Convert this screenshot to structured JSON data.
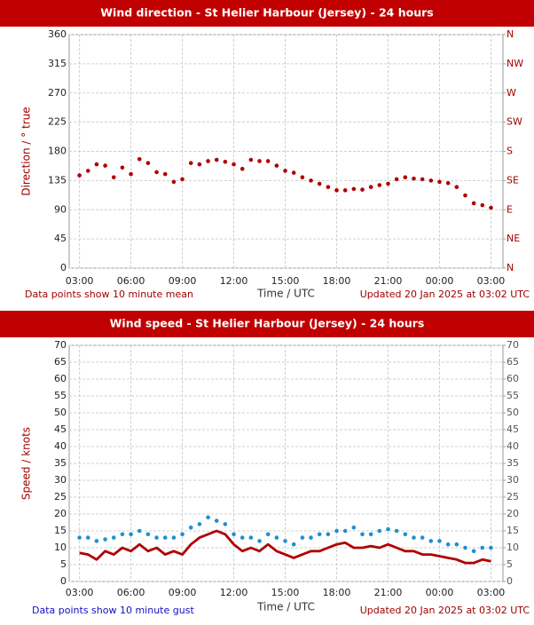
{
  "chart_data": [
    {
      "type": "scatter",
      "title": "Wind direction - St Helier Harbour (Jersey) - 24 hours",
      "xlabel": "Time / UTC",
      "ylabel": "Direction / ° true",
      "note": "Data points show 10 minute mean",
      "updated": "Updated 20 Jan 2025 at 03:02 UTC",
      "xlim": [
        2.4,
        27.7
      ],
      "xticks": [
        {
          "value": 3,
          "label": "03:00"
        },
        {
          "value": 6,
          "label": "06:00"
        },
        {
          "value": 9,
          "label": "09:00"
        },
        {
          "value": 12,
          "label": "12:00"
        },
        {
          "value": 15,
          "label": "15:00"
        },
        {
          "value": 18,
          "label": "18:00"
        },
        {
          "value": 21,
          "label": "21:00"
        },
        {
          "value": 24,
          "label": "00:00"
        },
        {
          "value": 27,
          "label": "03:00"
        }
      ],
      "ylim": [
        0,
        360
      ],
      "yticks": [
        0,
        45,
        90,
        135,
        180,
        225,
        270,
        315,
        360
      ],
      "y2lim": [
        0,
        360
      ],
      "y2ticks": [
        {
          "value": 0,
          "label": "N"
        },
        {
          "value": 45,
          "label": "NE"
        },
        {
          "value": 90,
          "label": "E"
        },
        {
          "value": 135,
          "label": "SE"
        },
        {
          "value": 180,
          "label": "S"
        },
        {
          "value": 225,
          "label": "SW"
        },
        {
          "value": 270,
          "label": "W"
        },
        {
          "value": 315,
          "label": "NW"
        },
        {
          "value": 360,
          "label": "N"
        }
      ],
      "grid": true,
      "x": [
        3,
        3.5,
        4,
        4.5,
        5,
        5.5,
        6,
        6.5,
        7,
        7.5,
        8,
        8.5,
        9,
        9.5,
        10,
        10.5,
        11,
        11.5,
        12,
        12.5,
        13,
        13.5,
        14,
        14.5,
        15,
        15.5,
        16,
        16.5,
        17,
        17.5,
        18,
        18.5,
        19,
        19.5,
        20,
        20.5,
        21,
        21.5,
        22,
        22.5,
        23,
        23.5,
        24,
        24.5,
        25,
        25.5,
        26,
        26.5,
        27
      ],
      "series": [
        {
          "color": "#b00000",
          "style": "markers",
          "values": [
            143,
            150,
            160,
            158,
            140,
            155,
            145,
            168,
            162,
            148,
            145,
            133,
            137,
            162,
            160,
            165,
            167,
            164,
            160,
            153,
            167,
            165,
            165,
            158,
            150,
            147,
            140,
            135,
            130,
            125,
            120,
            120,
            122,
            121,
            125,
            128,
            130,
            137,
            140,
            138,
            137,
            135,
            133,
            131,
            125,
            112,
            100,
            97,
            93
          ]
        }
      ]
    },
    {
      "type": "line",
      "title": "Wind speed - St Helier Harbour (Jersey) - 24 hours",
      "xlabel": "Time / UTC",
      "ylabel": "Speed / knots",
      "note": "Data points show 10 minute gust",
      "updated": "Updated 20 Jan 2025 at 03:02 UTC",
      "xlim": [
        2.4,
        27.7
      ],
      "xticks": [
        {
          "value": 3,
          "label": "03:00"
        },
        {
          "value": 6,
          "label": "06:00"
        },
        {
          "value": 9,
          "label": "09:00"
        },
        {
          "value": 12,
          "label": "12:00"
        },
        {
          "value": 15,
          "label": "15:00"
        },
        {
          "value": 18,
          "label": "18:00"
        },
        {
          "value": 21,
          "label": "21:00"
        },
        {
          "value": 24,
          "label": "00:00"
        },
        {
          "value": 27,
          "label": "03:00"
        }
      ],
      "ylim": [
        0,
        70
      ],
      "yticks": [
        0,
        5,
        10,
        15,
        20,
        25,
        30,
        35,
        40,
        45,
        50,
        55,
        60,
        65,
        70
      ],
      "y2lim": [
        0,
        70
      ],
      "y2ticks": [
        0,
        5,
        10,
        15,
        20,
        25,
        30,
        35,
        40,
        45,
        50,
        55,
        60,
        65,
        70
      ],
      "grid": true,
      "x": [
        3,
        3.5,
        4,
        4.5,
        5,
        5.5,
        6,
        6.5,
        7,
        7.5,
        8,
        8.5,
        9,
        9.5,
        10,
        10.5,
        11,
        11.5,
        12,
        12.5,
        13,
        13.5,
        14,
        14.5,
        15,
        15.5,
        16,
        16.5,
        17,
        17.5,
        18,
        18.5,
        19,
        19.5,
        20,
        20.5,
        21,
        21.5,
        22,
        22.5,
        23,
        23.5,
        24,
        24.5,
        25,
        25.5,
        26,
        26.5,
        27
      ],
      "series": [
        {
          "color": "#b00000",
          "style": "line",
          "values": [
            8.5,
            8,
            6.5,
            9,
            8,
            10,
            9,
            11,
            9,
            10,
            8,
            9,
            8,
            11,
            13,
            14,
            15,
            14,
            11,
            9,
            10,
            9,
            11,
            9,
            8,
            7,
            8,
            9,
            9,
            10,
            11,
            11.5,
            10,
            10,
            10.5,
            10,
            11,
            10,
            9,
            9,
            8,
            8,
            7.5,
            7,
            6.5,
            5.5,
            5.5,
            6.5,
            6
          ]
        },
        {
          "color": "#1e90d0",
          "style": "markers",
          "values": [
            13,
            13,
            12,
            12.5,
            13,
            14,
            14,
            15,
            14,
            13,
            13,
            13,
            14,
            16,
            17,
            19,
            18,
            17,
            14,
            13,
            13,
            12,
            14,
            13,
            12,
            11,
            13,
            13,
            14,
            14,
            15,
            15,
            16,
            14,
            14,
            15,
            15.5,
            15,
            14,
            13,
            13,
            12,
            12,
            11,
            11,
            10,
            9,
            10,
            10
          ]
        }
      ]
    }
  ]
}
